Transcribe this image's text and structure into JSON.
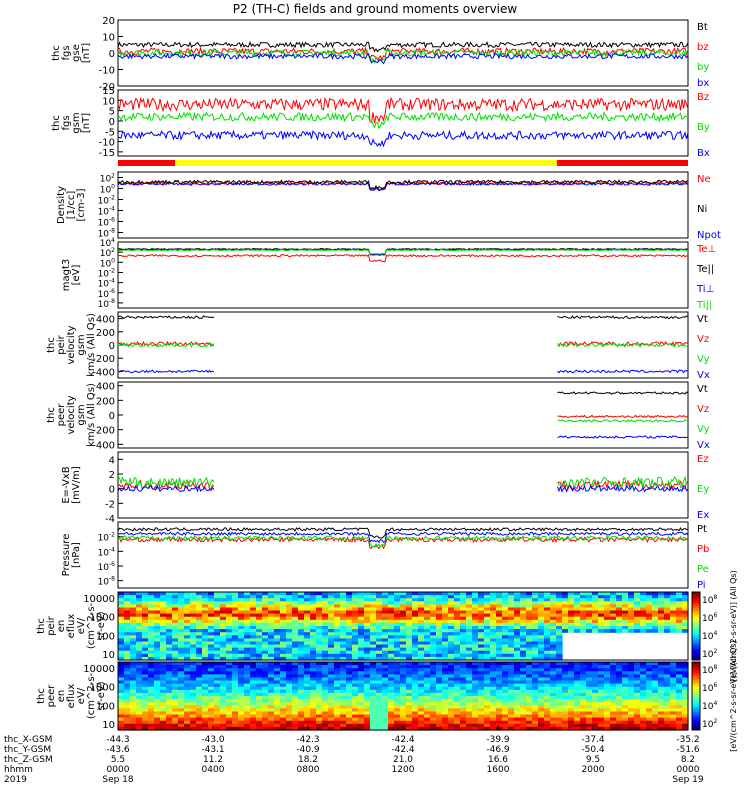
{
  "title": "P2 (TH-C) fields and ground moments overview",
  "colors": {
    "black": "#000000",
    "red": "#ff0000",
    "green": "#00e000",
    "blue": "#0000ff",
    "yellow": "#ffff00"
  },
  "chart_data": [
    {
      "type": "line",
      "panel_id": "fgs-gse",
      "ylabel_lines": [
        "thc",
        "fgs",
        "gse",
        "[nT]"
      ],
      "ylim": [
        -20,
        20
      ],
      "yticks": [
        20,
        10,
        0,
        -10,
        -20
      ],
      "series": [
        {
          "name": "Bt",
          "color": "black",
          "base": 5,
          "noise": 1.5
        },
        {
          "name": "bz",
          "color": "red",
          "base": 1,
          "noise": 2
        },
        {
          "name": "by",
          "color": "green",
          "base": 0,
          "noise": 2
        },
        {
          "name": "bx",
          "color": "blue",
          "base": -2,
          "noise": 1.5
        }
      ]
    },
    {
      "type": "line",
      "panel_id": "fgs-gsm",
      "ylabel_lines": [
        "thc",
        "fgs",
        "gsm",
        "[nT]"
      ],
      "ylim": [
        -17,
        15
      ],
      "yticks": [
        15,
        10,
        5,
        0,
        -5,
        -10,
        -15
      ],
      "series": [
        {
          "name": "Bz",
          "color": "red",
          "base": 8,
          "noise": 3
        },
        {
          "name": "By",
          "color": "green",
          "base": 2,
          "noise": 2
        },
        {
          "name": "Bx",
          "color": "blue",
          "base": -7,
          "noise": 2
        }
      ]
    },
    {
      "type": "line",
      "panel_id": "density",
      "ylabel_lines": [
        "Density",
        "[1/cc]",
        "[cm-3]"
      ],
      "ylog": true,
      "ylim": [
        -9,
        3
      ],
      "ytick_labels": [
        "10^2",
        "10^0",
        "10^-2",
        "10^-4",
        "10^-6",
        "10^-8"
      ],
      "series": [
        {
          "name": "Ne",
          "color": "red",
          "base": 1,
          "noise": 0.3
        },
        {
          "name": "Ni",
          "color": "black",
          "base": 1.2,
          "noise": 0.3
        },
        {
          "name": "Npot",
          "color": "blue",
          "base": 0.8,
          "noise": 0.2
        }
      ]
    },
    {
      "type": "line",
      "panel_id": "temperature",
      "ylabel_lines": [
        "magt3",
        "[eV]"
      ],
      "ylog": true,
      "ylim": [
        -9,
        4
      ],
      "ytick_labels": [
        "10^4",
        "10^2",
        "10^0",
        "10^-2",
        "10^-4",
        "10^-6",
        "10^-8"
      ],
      "series": [
        {
          "name": "Te⊥",
          "color": "red",
          "base": 1.3,
          "noise": 0.2
        },
        {
          "name": "Te||",
          "color": "black",
          "base": 2.6,
          "noise": 0.1
        },
        {
          "name": "Ti⊥",
          "color": "blue",
          "base": 2.5,
          "noise": 0.1
        },
        {
          "name": "Ti||",
          "color": "green",
          "base": 2.4,
          "noise": 0.1
        }
      ]
    },
    {
      "type": "line",
      "panel_id": "peir-velocity",
      "ylabel_lines": [
        "thc",
        "peir",
        "velocity",
        "gsm",
        "km/s (All Qs)"
      ],
      "ylim": [
        -500,
        500
      ],
      "yticks": [
        400,
        200,
        0,
        -200,
        -400
      ],
      "gaps": [
        [
          0.17,
          0.77
        ]
      ],
      "series": [
        {
          "name": "Vt",
          "color": "black",
          "base": 420,
          "noise": 20
        },
        {
          "name": "Vz",
          "color": "red",
          "base": 20,
          "noise": 30
        },
        {
          "name": "Vy",
          "color": "green",
          "base": 0,
          "noise": 30
        },
        {
          "name": "Vx",
          "color": "blue",
          "base": -400,
          "noise": 20
        }
      ]
    },
    {
      "type": "line",
      "panel_id": "peer-velocity",
      "ylabel_lines": [
        "thc",
        "peer",
        "velocity",
        "gsm",
        "km/s (All Qs)"
      ],
      "ylim": [
        -450,
        450
      ],
      "yticks": [
        400,
        200,
        0,
        -200,
        -400
      ],
      "gaps": [
        [
          0,
          0.77
        ]
      ],
      "series": [
        {
          "name": "Vt",
          "color": "black",
          "base": 300,
          "noise": 15
        },
        {
          "name": "Vz",
          "color": "red",
          "base": -20,
          "noise": 15
        },
        {
          "name": "Vy",
          "color": "green",
          "base": -80,
          "noise": 15
        },
        {
          "name": "Vx",
          "color": "blue",
          "base": -300,
          "noise": 15
        }
      ]
    },
    {
      "type": "line",
      "panel_id": "efield",
      "ylabel_lines": [
        "E=-VxB",
        "[mV/m]"
      ],
      "ylim": [
        -4,
        5
      ],
      "yticks": [
        4,
        2,
        0,
        -2,
        -4
      ],
      "gaps": [
        [
          0.17,
          0.77
        ]
      ],
      "series": [
        {
          "name": "Ez",
          "color": "red",
          "base": 0.5,
          "noise": 0.6
        },
        {
          "name": "Ey",
          "color": "green",
          "base": 0.8,
          "noise": 0.8
        },
        {
          "name": "Ex",
          "color": "blue",
          "base": 0,
          "noise": 0.4
        }
      ]
    },
    {
      "type": "line",
      "panel_id": "pressure",
      "ylabel_lines": [
        "Pressure",
        "[nPa]"
      ],
      "ylog": true,
      "ylim": [
        -9,
        0
      ],
      "ytick_labels": [
        "10^-2",
        "10^-4",
        "10^-6",
        "10^-8"
      ],
      "series": [
        {
          "name": "Pt",
          "color": "black",
          "base": -1,
          "noise": 0.2
        },
        {
          "name": "Pb",
          "color": "red",
          "base": -2.4,
          "noise": 0.3
        },
        {
          "name": "Pe",
          "color": "green",
          "base": -2.2,
          "noise": 0.3
        },
        {
          "name": "Pi",
          "color": "blue",
          "base": -1.6,
          "noise": 0.2
        }
      ]
    },
    {
      "type": "heatmap",
      "panel_id": "peir-eflux",
      "ylabel_lines": [
        "thc",
        "peir",
        "en",
        "eflux",
        "eV/",
        "(cm^2-s-",
        "sr-eV)"
      ],
      "ytick_labels": [
        "10000",
        "1000",
        "100",
        "10"
      ],
      "colorbar_label": "[eV/(cm^2-s-sr-eV)] (All Qs)",
      "colorbar_ticks": [
        "10^8",
        "10^6",
        "10^4",
        "10^2"
      ]
    },
    {
      "type": "heatmap",
      "panel_id": "peer-eflux",
      "ylabel_lines": [
        "thc",
        "peer",
        "en",
        "eflux",
        "eV/",
        "(cm^2-s-",
        "sr-eV)"
      ],
      "ytick_labels": [
        "10000",
        "1000",
        "100",
        "10"
      ],
      "colorbar_label": "[eV/(cm^2-s-sr-eV)] (All Qs)",
      "colorbar_ticks": [
        "10^8",
        "10^6",
        "10^4",
        "10^2"
      ]
    }
  ],
  "x_axis": {
    "rows": [
      {
        "label": "thc_X-GSM",
        "values": [
          "-44.3",
          "-43.0",
          "-42.3",
          "-42.4",
          "-39.9",
          "-37.4",
          "-35.2"
        ]
      },
      {
        "label": "thc_Y-GSM",
        "values": [
          "-43.6",
          "-43.1",
          "-40.9",
          "-42.4",
          "-46.9",
          "-50.4",
          "-51.6"
        ]
      },
      {
        "label": "thc_Z-GSM",
        "values": [
          "5.5",
          "11.2",
          "18.2",
          "21.0",
          "16.6",
          "9.5",
          "8.2"
        ]
      },
      {
        "label": "hhmm",
        "values": [
          "0000",
          "0400",
          "0800",
          "1200",
          "1600",
          "2000",
          "0000"
        ]
      },
      {
        "label": "2019",
        "values": [
          "Sep 18",
          "",
          "",
          "",
          "",
          "",
          "Sep 19"
        ]
      }
    ]
  }
}
